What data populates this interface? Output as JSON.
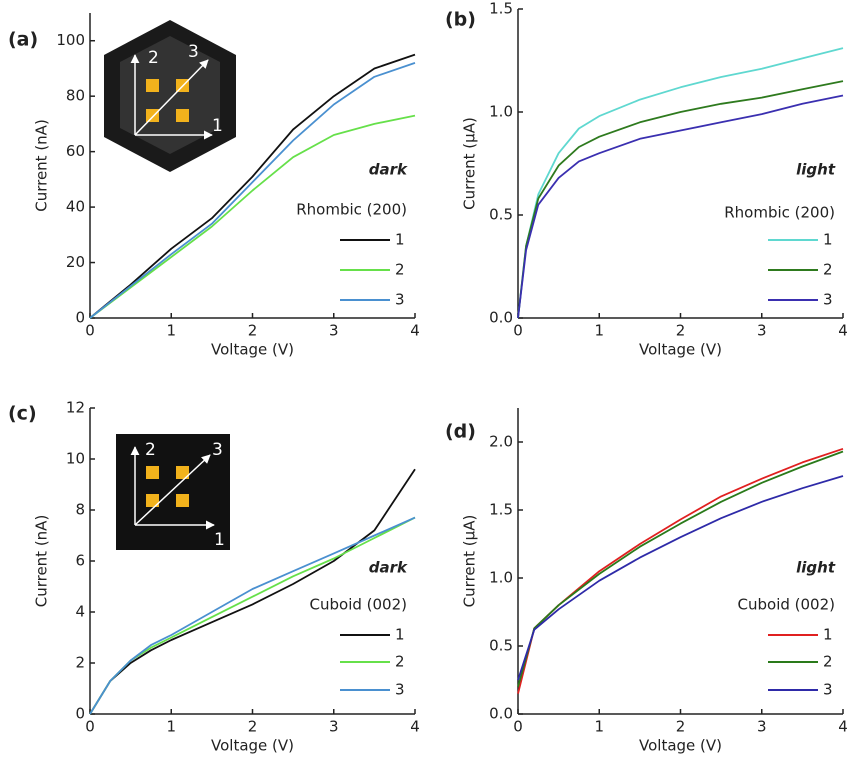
{
  "chart_data": [
    {
      "type": "line",
      "panel_label": "(a)",
      "xlabel": "Voltage (V)",
      "ylabel": "Current (nA)",
      "annotation": "dark",
      "legend_title": "Rhombic (200)",
      "inset_labels": [
        "2",
        "3",
        "1"
      ],
      "x": [
        0,
        0.5,
        1,
        1.5,
        2,
        2.5,
        3,
        3.5,
        4
      ],
      "series": [
        {
          "name": "1",
          "color": "#111111",
          "values": [
            0,
            12,
            25,
            36,
            51,
            68,
            80,
            90,
            95
          ]
        },
        {
          "name": "2",
          "color": "#66e04a",
          "values": [
            0,
            11,
            22,
            33,
            46,
            58,
            66,
            70,
            73
          ]
        },
        {
          "name": "3",
          "color": "#4a90d0",
          "values": [
            0,
            11.5,
            23,
            34,
            49,
            64,
            77,
            87,
            92
          ]
        }
      ],
      "xlim": [
        0,
        4
      ],
      "ylim": [
        0,
        110
      ],
      "xticks": [
        0,
        1,
        2,
        3,
        4
      ],
      "yticks": [
        0,
        20,
        40,
        60,
        80,
        100
      ]
    },
    {
      "type": "line",
      "panel_label": "(b)",
      "xlabel": "Voltage (V)",
      "ylabel": "Current (µA)",
      "annotation": "light",
      "legend_title": "Rhombic (200)",
      "x": [
        0,
        0.1,
        0.25,
        0.5,
        0.75,
        1,
        1.5,
        2,
        2.5,
        3,
        3.5,
        4
      ],
      "series": [
        {
          "name": "1",
          "color": "#5fd8d0",
          "values": [
            0,
            0.35,
            0.6,
            0.8,
            0.92,
            0.98,
            1.06,
            1.12,
            1.17,
            1.21,
            1.26,
            1.31
          ]
        },
        {
          "name": "2",
          "color": "#2e7a1e",
          "values": [
            0,
            0.35,
            0.58,
            0.74,
            0.83,
            0.88,
            0.95,
            1.0,
            1.04,
            1.07,
            1.11,
            1.15
          ]
        },
        {
          "name": "3",
          "color": "#3a2fb0",
          "values": [
            0,
            0.33,
            0.55,
            0.68,
            0.76,
            0.8,
            0.87,
            0.91,
            0.95,
            0.99,
            1.04,
            1.08
          ]
        }
      ],
      "xlim": [
        0,
        4
      ],
      "ylim": [
        0,
        1.5
      ],
      "xticks": [
        0,
        1,
        2,
        3,
        4
      ],
      "yticks": [
        {
          "value": 0,
          "label": "0.0"
        },
        0.5,
        {
          "value": 1,
          "label": "1.0"
        },
        1.5
      ]
    },
    {
      "type": "line",
      "panel_label": "(c)",
      "xlabel": "Voltage (V)",
      "ylabel": "Current (nA)",
      "annotation": "dark",
      "legend_title": "Cuboid (002)",
      "inset_labels": [
        "2",
        "3",
        "1"
      ],
      "x": [
        0,
        0.25,
        0.5,
        0.75,
        1,
        1.5,
        2,
        2.5,
        3,
        3.5,
        4
      ],
      "series": [
        {
          "name": "1",
          "color": "#111111",
          "values": [
            0,
            1.3,
            2.0,
            2.5,
            2.9,
            3.6,
            4.3,
            5.1,
            6.0,
            7.2,
            9.6
          ]
        },
        {
          "name": "2",
          "color": "#66e04a",
          "values": [
            0,
            1.3,
            2.1,
            2.6,
            3.0,
            3.8,
            4.6,
            5.4,
            6.1,
            6.9,
            7.7
          ]
        },
        {
          "name": "3",
          "color": "#4a90d0",
          "values": [
            0,
            1.3,
            2.1,
            2.7,
            3.1,
            4.0,
            4.9,
            5.6,
            6.3,
            7.0,
            7.7
          ]
        }
      ],
      "xlim": [
        0,
        4
      ],
      "ylim": [
        0,
        12
      ],
      "xticks": [
        0,
        1,
        2,
        3,
        4
      ],
      "yticks": [
        0,
        2,
        4,
        6,
        8,
        10,
        12
      ]
    },
    {
      "type": "line",
      "panel_label": "(d)",
      "xlabel": "Voltage (V)",
      "ylabel": "Current (µA)",
      "annotation": "light",
      "legend_title": "Cuboid (002)",
      "x": [
        0,
        0.2,
        0.5,
        1,
        1.5,
        2,
        2.5,
        3,
        3.5,
        4
      ],
      "series": [
        {
          "name": "1",
          "color": "#e02020",
          "values": [
            0.15,
            0.63,
            0.8,
            1.05,
            1.25,
            1.43,
            1.6,
            1.73,
            1.85,
            1.95
          ]
        },
        {
          "name": "2",
          "color": "#2a7a1a",
          "values": [
            0.2,
            0.63,
            0.8,
            1.03,
            1.23,
            1.4,
            1.56,
            1.7,
            1.82,
            1.93
          ]
        },
        {
          "name": "3",
          "color": "#2e2aa8",
          "values": [
            0.25,
            0.62,
            0.77,
            0.98,
            1.15,
            1.3,
            1.44,
            1.56,
            1.66,
            1.75
          ]
        }
      ],
      "xlim": [
        0,
        4
      ],
      "ylim": [
        0,
        2.25
      ],
      "xticks": [
        0,
        1,
        2,
        3,
        4
      ],
      "yticks": [
        {
          "value": 0,
          "label": "0.0"
        },
        0.5,
        {
          "value": 1,
          "label": "1.0"
        },
        1.5,
        {
          "value": 2,
          "label": "2.0"
        }
      ]
    }
  ]
}
